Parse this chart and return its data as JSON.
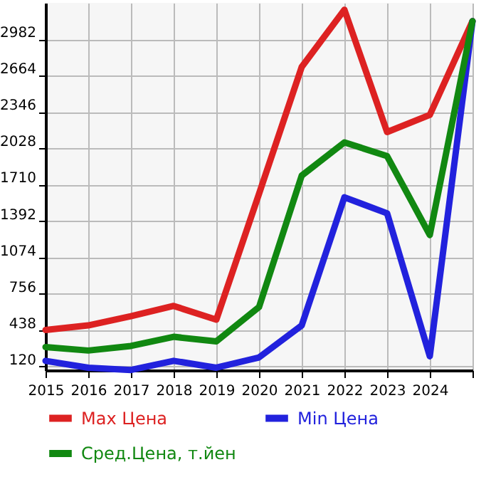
{
  "chart_data": {
    "type": "line",
    "categories": [
      "2015",
      "2016",
      "2017",
      "2018",
      "2019",
      "2020",
      "2021",
      "2022",
      "2023",
      "2024",
      null
    ],
    "series": [
      {
        "name": "Max Цена",
        "color": "#dd2222",
        "values": [
          440,
          480,
          560,
          650,
          530,
          1630,
          2740,
          3240,
          2170,
          2320,
          3140
        ]
      },
      {
        "name": "Min Цена",
        "color": "#2222dd",
        "values": [
          170,
          110,
          90,
          170,
          110,
          200,
          480,
          1600,
          1460,
          210,
          3140
        ]
      },
      {
        "name": "Сред.Цена, т.йен",
        "color": "#118811",
        "values": [
          290,
          260,
          300,
          380,
          340,
          640,
          1790,
          2080,
          1960,
          1270,
          3140
        ]
      }
    ],
    "ylim": [
      88,
      3300
    ],
    "yticks": [
      120,
      438,
      756,
      1074,
      1392,
      1710,
      2028,
      2346,
      2664,
      2982
    ],
    "grid": true,
    "legend": "bottom",
    "line_style": "solid"
  }
}
